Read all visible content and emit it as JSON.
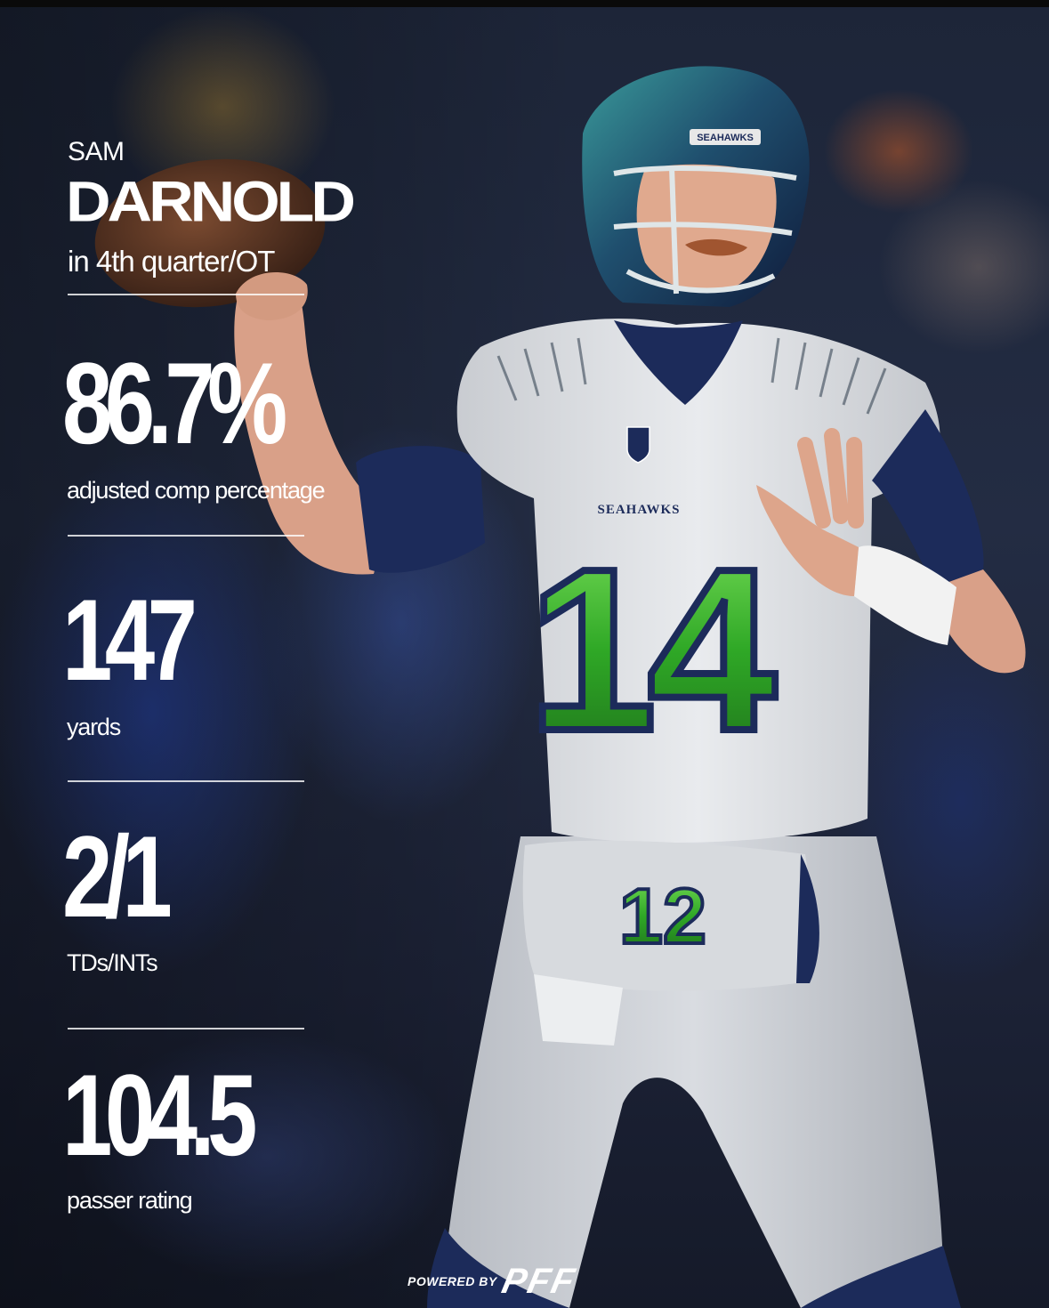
{
  "player": {
    "first_name": "SAM",
    "last_name": "DARNOLD",
    "context": "in 4th quarter/OT",
    "jersey_number": "14",
    "jersey_team": "SEAHAWKS",
    "helmet_team": "SEAHAWKS",
    "hand_warmer_number": "12"
  },
  "stats": [
    {
      "value": "86.7%",
      "label": "adjusted comp percentage"
    },
    {
      "value": "147",
      "label": "yards"
    },
    {
      "value": "2/1",
      "label": "TDs/INTs"
    },
    {
      "value": "104.5",
      "label": "passer rating"
    }
  ],
  "footer": {
    "powered_by": "POWERED BY",
    "brand": "PFF"
  },
  "colors": {
    "navy": "#1c2b5a",
    "jersey_white": "#dfe2e6",
    "action_green": "#4fd13a",
    "text": "#ffffff"
  }
}
